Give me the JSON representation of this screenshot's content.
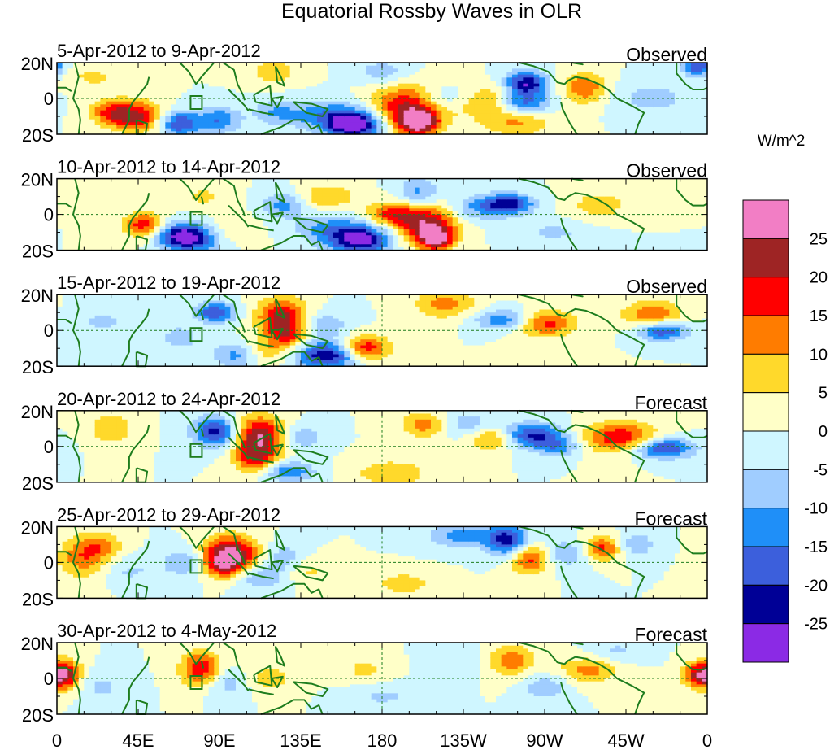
{
  "chart_data": {
    "type": "heatmap",
    "title": "Equatorial Rossby Waves in OLR",
    "colorbar": {
      "unit": "W/m^2",
      "levels": [
        25,
        20,
        15,
        10,
        5,
        0,
        -5,
        -10,
        -15,
        -20,
        -25
      ],
      "colors": [
        "#f27ec5",
        "#9e2424",
        "#ff0000",
        "#ff7c00",
        "#ffd92b",
        "#ffffc8",
        "#cff6ff",
        "#a0cdff",
        "#1f8ff8",
        "#3c5fdc",
        "#000096",
        "#8b2ae5"
      ]
    },
    "x_ticks": [
      "0",
      "45E",
      "90E",
      "135E",
      "180",
      "135W",
      "90W",
      "45W",
      "0"
    ],
    "y_ticks": [
      "20N",
      "0",
      "20S"
    ],
    "panels": [
      {
        "period": "5-Apr-2012 to 9-Apr-2012",
        "label": "Observed",
        "blobs": [
          [
            30,
            -8,
            8,
            5,
            15
          ],
          [
            45,
            -10,
            10,
            6,
            20
          ],
          [
            68,
            -14,
            8,
            5,
            -20
          ],
          [
            90,
            -12,
            8,
            5,
            -15
          ],
          [
            122,
            -8,
            10,
            5,
            -10
          ],
          [
            165,
            -15,
            10,
            5,
            -28
          ],
          [
            152,
            -10,
            14,
            6,
            -15
          ],
          [
            195,
            -4,
            14,
            8,
            22
          ],
          [
            200,
            -14,
            8,
            5,
            26
          ],
          [
            213,
            0,
            12,
            5,
            -10
          ],
          [
            260,
            8,
            8,
            5,
            -26
          ],
          [
            258,
            -3,
            10,
            4,
            -18
          ],
          [
            240,
            -2,
            14,
            6,
            12
          ],
          [
            292,
            6,
            8,
            6,
            15
          ],
          [
            255,
            -14,
            14,
            5,
            10
          ],
          [
            355,
            18,
            6,
            4,
            -20
          ],
          [
            180,
            15,
            10,
            5,
            -8
          ],
          [
            120,
            15,
            10,
            5,
            8
          ],
          [
            330,
            0,
            14,
            6,
            -8
          ],
          [
            20,
            12,
            12,
            5,
            6
          ]
        ]
      },
      {
        "period": "10-Apr-2012 to 14-Apr-2012",
        "label": "Observed",
        "blobs": [
          [
            68,
            -12,
            9,
            5,
            -22
          ],
          [
            80,
            -14,
            12,
            6,
            -15
          ],
          [
            48,
            -6,
            8,
            5,
            18
          ],
          [
            95,
            -10,
            10,
            6,
            8
          ],
          [
            125,
            5,
            8,
            5,
            -12
          ],
          [
            168,
            -14,
            12,
            6,
            -28
          ],
          [
            148,
            -8,
            12,
            6,
            -10
          ],
          [
            205,
            -6,
            12,
            8,
            24
          ],
          [
            210,
            -14,
            6,
            4,
            22
          ],
          [
            185,
            0,
            10,
            5,
            15
          ],
          [
            200,
            12,
            8,
            6,
            -12
          ],
          [
            250,
            6,
            10,
            4,
            -22
          ],
          [
            232,
            3,
            12,
            5,
            -10
          ],
          [
            150,
            10,
            10,
            5,
            10
          ],
          [
            300,
            5,
            12,
            6,
            8
          ],
          [
            80,
            10,
            10,
            5,
            6
          ],
          [
            275,
            -10,
            16,
            5,
            -6
          ]
        ]
      },
      {
        "period": "15-Apr-2012 to 19-Apr-2012",
        "label": "Observed",
        "blobs": [
          [
            88,
            10,
            8,
            4,
            -20
          ],
          [
            100,
            -14,
            10,
            5,
            -12
          ],
          [
            68,
            -4,
            8,
            5,
            -8
          ],
          [
            125,
            8,
            10,
            7,
            22
          ],
          [
            128,
            -3,
            8,
            5,
            15
          ],
          [
            150,
            -14,
            12,
            5,
            -26
          ],
          [
            170,
            -10,
            10,
            5,
            20
          ],
          [
            147,
            2,
            10,
            6,
            -10
          ],
          [
            115,
            -12,
            8,
            5,
            10
          ],
          [
            215,
            15,
            12,
            6,
            12
          ],
          [
            248,
            6,
            12,
            4,
            -15
          ],
          [
            270,
            4,
            12,
            5,
            18
          ],
          [
            335,
            0,
            10,
            4,
            -22
          ],
          [
            330,
            8,
            12,
            6,
            15
          ],
          [
            25,
            5,
            12,
            6,
            -6
          ]
        ]
      },
      {
        "period": "20-Apr-2012 to 24-Apr-2012",
        "label": "Forecast",
        "blobs": [
          [
            88,
            8,
            9,
            6,
            -22
          ],
          [
            112,
            5,
            10,
            8,
            26
          ],
          [
            110,
            -8,
            8,
            5,
            15
          ],
          [
            128,
            -14,
            10,
            4,
            -15
          ],
          [
            135,
            5,
            8,
            5,
            -10
          ],
          [
            185,
            -15,
            14,
            5,
            10
          ],
          [
            205,
            12,
            10,
            5,
            15
          ],
          [
            225,
            12,
            14,
            5,
            -10
          ],
          [
            242,
            5,
            10,
            5,
            15
          ],
          [
            262,
            6,
            12,
            5,
            -22
          ],
          [
            278,
            0,
            8,
            4,
            -12
          ],
          [
            312,
            5,
            14,
            6,
            20
          ],
          [
            335,
            -1,
            12,
            4,
            -22
          ],
          [
            30,
            10,
            8,
            6,
            10
          ]
        ]
      },
      {
        "period": "25-Apr-2012 to 29-Apr-2012",
        "label": "Forecast",
        "blobs": [
          [
            96,
            5,
            11,
            7,
            26
          ],
          [
            92,
            -2,
            8,
            5,
            15
          ],
          [
            72,
            0,
            10,
            6,
            -10
          ],
          [
            112,
            -8,
            10,
            5,
            -10
          ],
          [
            125,
            3,
            8,
            6,
            -8
          ],
          [
            140,
            -5,
            10,
            5,
            6
          ],
          [
            192,
            -12,
            12,
            5,
            8
          ],
          [
            225,
            15,
            14,
            5,
            -12
          ],
          [
            250,
            12,
            8,
            6,
            -22
          ],
          [
            262,
            2,
            8,
            6,
            18
          ],
          [
            302,
            8,
            8,
            5,
            18
          ],
          [
            282,
            5,
            10,
            6,
            -10
          ],
          [
            320,
            10,
            8,
            5,
            -10
          ],
          [
            15,
            3,
            10,
            8,
            14
          ],
          [
            25,
            10,
            8,
            5,
            8
          ],
          [
            40,
            -5,
            10,
            5,
            -6
          ]
        ]
      },
      {
        "period": "30-Apr-2012 to 4-May-2012",
        "label": "Forecast",
        "blobs": [
          [
            80,
            5,
            8,
            7,
            20
          ],
          [
            95,
            -2,
            10,
            6,
            -10
          ],
          [
            115,
            0,
            12,
            6,
            8
          ],
          [
            170,
            5,
            10,
            6,
            6
          ],
          [
            230,
            10,
            14,
            6,
            -5
          ],
          [
            250,
            10,
            10,
            6,
            15
          ],
          [
            270,
            -5,
            8,
            5,
            -10
          ],
          [
            295,
            5,
            12,
            5,
            12
          ],
          [
            310,
            15,
            10,
            5,
            -6
          ],
          [
            5,
            2,
            6,
            6,
            22
          ],
          [
            25,
            -5,
            10,
            6,
            -6
          ],
          [
            355,
            2,
            6,
            5,
            20
          ],
          [
            180,
            -10,
            14,
            5,
            -6
          ]
        ]
      }
    ]
  }
}
